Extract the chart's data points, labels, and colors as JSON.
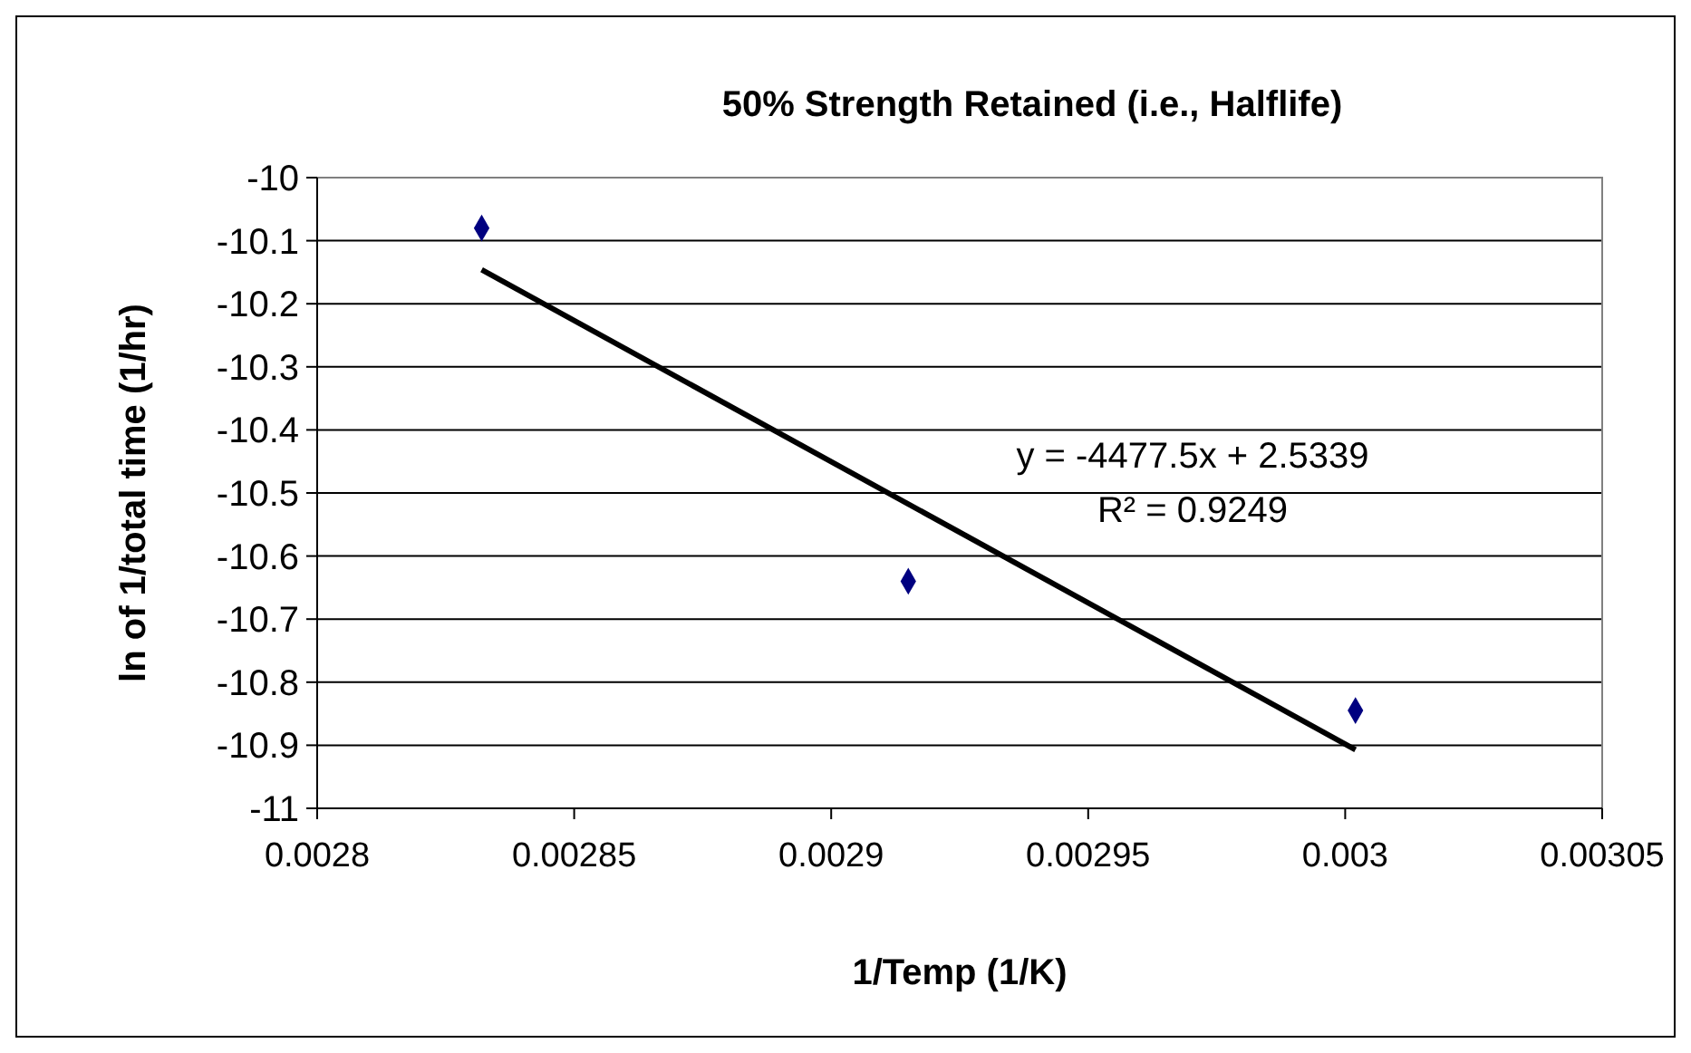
{
  "chart_data": {
    "type": "scatter",
    "title": "50% Strength Retained (i.e., Halflife)",
    "xlabel": "1/Temp (1/K)",
    "ylabel": "ln of 1/total time (1/hr)",
    "xlim": [
      0.0028,
      0.00305
    ],
    "xticks": [
      0.0028,
      0.00285,
      0.0029,
      0.00295,
      0.003,
      0.00305
    ],
    "ylim": [
      -11,
      -10
    ],
    "yticks": [
      -11,
      -10.9,
      -10.8,
      -10.7,
      -10.6,
      -10.5,
      -10.4,
      -10.3,
      -10.2,
      -10.1,
      -10
    ],
    "grid": "y",
    "marker": "diamond",
    "series": [
      {
        "color": "#000080",
        "x": [
          0.002832,
          0.002915,
          0.003002
        ],
        "values": [
          -10.08,
          -10.64,
          -10.845
        ]
      },
      {
        "type": "line",
        "color": "#000000",
        "marker": "none",
        "line_style": "solid",
        "x": [
          0.002832,
          0.003002
        ],
        "values": [
          -10.146,
          -10.907
        ]
      }
    ],
    "annotations": [
      "y = -4477.5x + 2.5339",
      "R² = 0.9249"
    ]
  }
}
